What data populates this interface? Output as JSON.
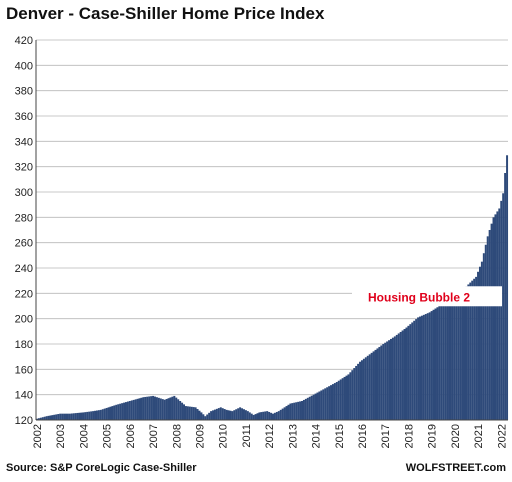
{
  "chart_data": {
    "type": "bar",
    "title": "Denver  - Case-Shiller Home Price Index",
    "source": "Source: S&P CoreLogic Case-Shiller",
    "watermark": "WOLFSTREET.com",
    "xlabel": "",
    "ylabel": "",
    "ylim": [
      120,
      420
    ],
    "yticks": [
      "120",
      "140",
      "160",
      "180",
      "200",
      "220",
      "240",
      "260",
      "280",
      "300",
      "320",
      "340",
      "360",
      "380",
      "400",
      "420"
    ],
    "xticks": [
      "2002",
      "2003",
      "2004",
      "2005",
      "2006",
      "2007",
      "2008",
      "2009",
      "2010",
      "2011",
      "2012",
      "2013",
      "2014",
      "2015",
      "2016",
      "2017",
      "2018",
      "2019",
      "2020",
      "2021",
      "2022"
    ],
    "grid": true,
    "frequency": "monthly",
    "annotation": {
      "text": "Housing Bubble 2",
      "color": "#e0001b"
    },
    "bar_color": "#2e4a7a",
    "anchors": [
      [
        "2002-01",
        121
      ],
      [
        "2002-06",
        123
      ],
      [
        "2003-01",
        125
      ],
      [
        "2003-06",
        125
      ],
      [
        "2004-01",
        126
      ],
      [
        "2004-06",
        127
      ],
      [
        "2004-10",
        128
      ],
      [
        "2005-06",
        132
      ],
      [
        "2006-01",
        135
      ],
      [
        "2006-08",
        138
      ],
      [
        "2007-01",
        139
      ],
      [
        "2007-07",
        136
      ],
      [
        "2007-12",
        139
      ],
      [
        "2008-06",
        131
      ],
      [
        "2008-11",
        130
      ],
      [
        "2009-02",
        126
      ],
      [
        "2009-04",
        123
      ],
      [
        "2009-07",
        127
      ],
      [
        "2009-12",
        130
      ],
      [
        "2010-03",
        128
      ],
      [
        "2010-06",
        127
      ],
      [
        "2010-10",
        130
      ],
      [
        "2011-02",
        127
      ],
      [
        "2011-05",
        124
      ],
      [
        "2011-08",
        126
      ],
      [
        "2011-12",
        127
      ],
      [
        "2012-03",
        125
      ],
      [
        "2012-06",
        127
      ],
      [
        "2012-12",
        133
      ],
      [
        "2013-06",
        135
      ],
      [
        "2013-12",
        140
      ],
      [
        "2014-06",
        145
      ],
      [
        "2014-12",
        150
      ],
      [
        "2015-06",
        156
      ],
      [
        "2015-12",
        166
      ],
      [
        "2016-06",
        173
      ],
      [
        "2016-12",
        180
      ],
      [
        "2017-06",
        186
      ],
      [
        "2017-12",
        193
      ],
      [
        "2018-06",
        201
      ],
      [
        "2018-12",
        205
      ],
      [
        "2019-06",
        211
      ],
      [
        "2019-12",
        218
      ],
      [
        "2020-06",
        224
      ],
      [
        "2020-12",
        233
      ],
      [
        "2021-03",
        245
      ],
      [
        "2021-06",
        265
      ],
      [
        "2021-09",
        280
      ],
      [
        "2021-12",
        287
      ],
      [
        "2022-02",
        299
      ],
      [
        "2022-03",
        315
      ],
      [
        "2022-04",
        329
      ]
    ]
  }
}
